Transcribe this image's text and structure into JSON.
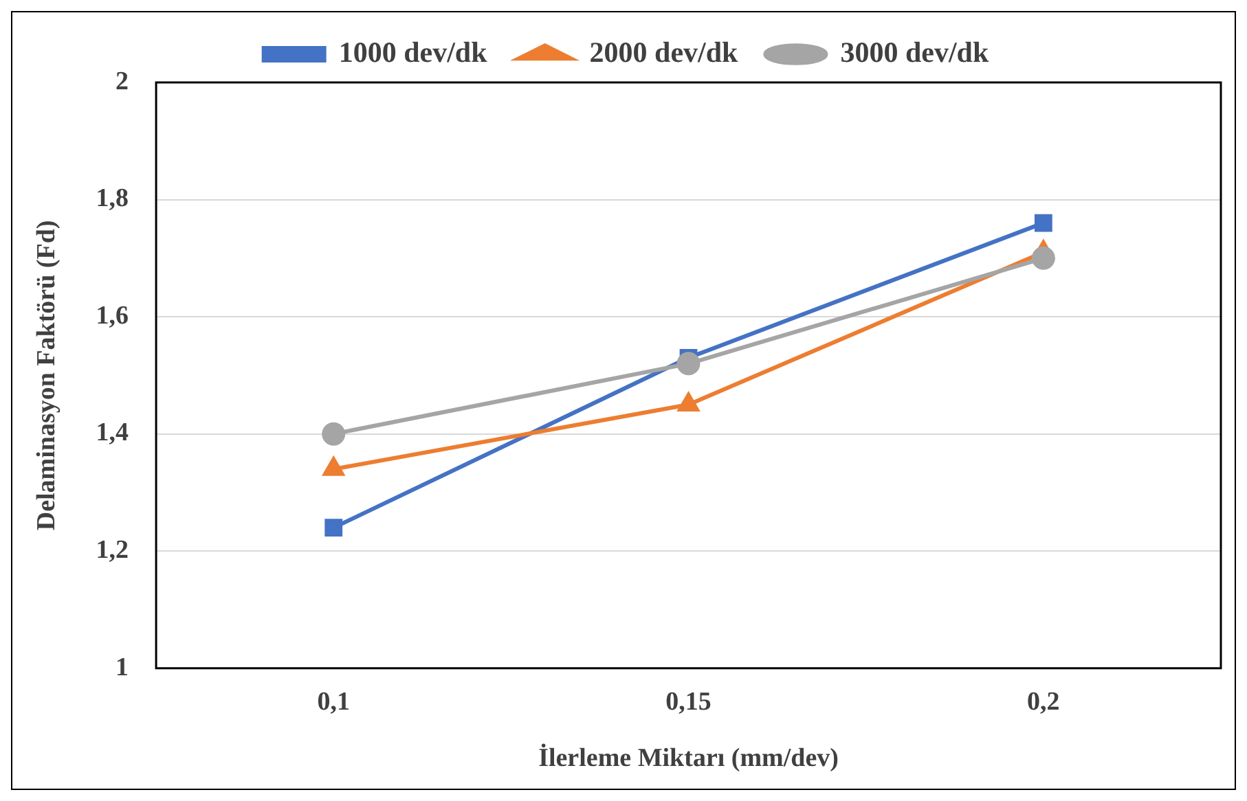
{
  "chart_data": {
    "type": "line",
    "xlabel": "İlerleme Miktarı (mm/dev)",
    "ylabel": "Delaminasyon Faktörü (Fd)",
    "categories": [
      "0,1",
      "0,15",
      "0,2"
    ],
    "series": [
      {
        "name": "1000 dev/dk",
        "color": "#4472c4",
        "marker": "square",
        "values": [
          1.24,
          1.53,
          1.76
        ]
      },
      {
        "name": "2000 dev/dk",
        "color": "#ed7d31",
        "marker": "triangle",
        "values": [
          1.34,
          1.45,
          1.71
        ]
      },
      {
        "name": "3000 dev/dk",
        "color": "#a5a5a5",
        "marker": "circle",
        "values": [
          1.4,
          1.52,
          1.7
        ]
      }
    ],
    "ylim": [
      1,
      2
    ],
    "yticks": [
      1,
      {
        "value": 1.2,
        "label": "1,2"
      },
      {
        "value": 1.4,
        "label": "1,4"
      },
      {
        "value": 1.6,
        "label": "1,6"
      },
      {
        "value": 1.8,
        "label": "1,8"
      },
      2
    ],
    "grid": "y",
    "legend": "top",
    "line_style": "solid"
  }
}
